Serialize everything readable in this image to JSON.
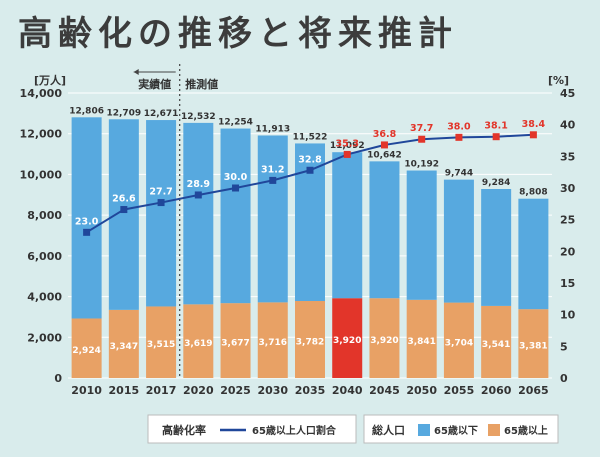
{
  "title": "高齢化の推移と将来推計",
  "colors": {
    "background": "#d9ecec",
    "under65": "#57a9df",
    "over65": "#e8a165",
    "over65_highlight": "#e2352a",
    "line": "#20479a",
    "line_point_actual": "#20479a",
    "line_label_projected_high": "#e2352a"
  },
  "chart_data": {
    "type": "bar",
    "subtype": "stacked bar + line (secondary axis)",
    "title": "高齢化の推移と将来推計",
    "categories": [
      "2010",
      "2015",
      "2017",
      "2020",
      "2025",
      "2030",
      "2035",
      "2040",
      "2045",
      "2050",
      "2055",
      "2060",
      "2065"
    ],
    "y_left": {
      "unit_label": "[万人]",
      "ticks": [
        "0",
        "2,000",
        "4,000",
        "6,000",
        "8,000",
        "10,000",
        "12,000",
        "14,000"
      ],
      "ylim": [
        0,
        14000
      ]
    },
    "y_right": {
      "unit_label": "[%]",
      "ticks": [
        "0",
        "5",
        "10",
        "15",
        "20",
        "25",
        "30",
        "35",
        "40",
        "45"
      ],
      "ylim": [
        0,
        45
      ]
    },
    "period_labels": {
      "actual": "実績値",
      "projected": "推測値"
    },
    "series": [
      {
        "name": "65歳以上",
        "values": [
          2924,
          3347,
          3515,
          3619,
          3677,
          3716,
          3782,
          3920,
          3920,
          3841,
          3704,
          3541,
          3381
        ],
        "labels": [
          "2,924",
          "3,347",
          "3,515",
          "3,619",
          "3,677",
          "3,716",
          "3,782",
          "3,920",
          "3,920",
          "3,841",
          "3,704",
          "3,541",
          "3,381"
        ]
      },
      {
        "name": "65歳以下",
        "values": [
          9882,
          9362,
          9156,
          8913,
          8577,
          8197,
          7740,
          7172,
          6722,
          6351,
          6040,
          5743,
          5427
        ]
      },
      {
        "name": "65歳以上人口割合",
        "axis": "right",
        "values": [
          23.0,
          26.6,
          27.7,
          28.9,
          30.0,
          31.2,
          32.8,
          35.3,
          36.8,
          37.7,
          38.0,
          38.1,
          38.4
        ],
        "labels": [
          "23.0",
          "26.6",
          "27.7",
          "28.9",
          "30.0",
          "31.2",
          "32.8",
          "35.3",
          "36.8",
          "37.7",
          "38.0",
          "38.1",
          "38.4"
        ]
      }
    ],
    "totals": {
      "name": "総人口",
      "values": [
        12806,
        12709,
        12671,
        12532,
        12254,
        11913,
        11522,
        11092,
        10642,
        10192,
        9744,
        9284,
        8808
      ],
      "labels": [
        "12,806",
        "12,709",
        "12,671",
        "12,532",
        "12,254",
        "11,913",
        "11,522",
        "11,092",
        "10,642",
        "10,192",
        "9,744",
        "9,284",
        "8,808"
      ]
    },
    "highlight_category": "2040",
    "legend": {
      "position": "bottom",
      "left_title": "高齢化率",
      "left_line_label": "65歳以上人口割合",
      "right_title": "総人口",
      "under65_label": "65歳以下",
      "over65_label": "65歳以上"
    },
    "grid": true
  }
}
